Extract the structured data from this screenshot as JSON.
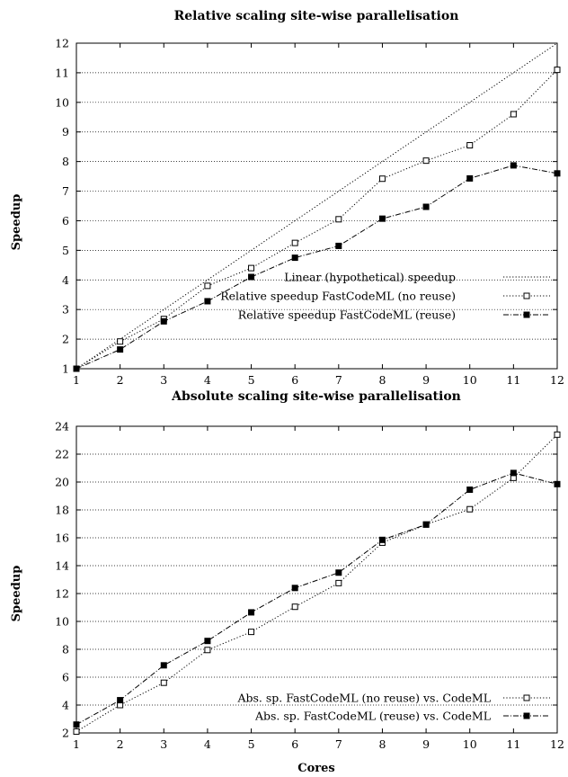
{
  "chart_data": [
    {
      "type": "line",
      "title": "Relative scaling site-wise parallelisation",
      "xlabel": "",
      "ylabel": "Speedup",
      "x": [
        1,
        2,
        3,
        4,
        5,
        6,
        7,
        8,
        9,
        10,
        11,
        12
      ],
      "xlim": [
        1,
        12
      ],
      "ylim": [
        1,
        12
      ],
      "yticks": [
        1,
        2,
        3,
        4,
        5,
        6,
        7,
        8,
        9,
        10,
        11,
        12
      ],
      "grid": "horizontal",
      "legend": "bottom-right",
      "series": [
        {
          "name": "Linear (hypothetical) speedup",
          "style": "dotted",
          "marker": "none",
          "values": [
            1,
            2,
            3,
            4,
            5,
            6,
            7,
            8,
            9,
            10,
            11,
            12
          ]
        },
        {
          "name": "Relative speedup FastCodeML (no reuse)",
          "style": "dotted",
          "marker": "open-square",
          "values": [
            1,
            1.92,
            2.68,
            3.8,
            4.4,
            5.25,
            6.05,
            7.42,
            8.03,
            8.55,
            9.6,
            11.1
          ]
        },
        {
          "name": "Relative speedup FastCodeML (reuse)",
          "style": "dashdot",
          "marker": "filled-square",
          "values": [
            1,
            1.65,
            2.6,
            3.28,
            4.1,
            4.75,
            5.15,
            6.07,
            6.47,
            7.43,
            7.87,
            7.6
          ]
        }
      ]
    },
    {
      "type": "line",
      "title": "Absolute scaling site-wise parallelisation",
      "xlabel": "Cores",
      "ylabel": "Speedup",
      "x": [
        1,
        2,
        3,
        4,
        5,
        6,
        7,
        8,
        9,
        10,
        11,
        12
      ],
      "xlim": [
        1,
        12
      ],
      "ylim": [
        2,
        24
      ],
      "yticks": [
        2,
        4,
        6,
        8,
        10,
        12,
        14,
        16,
        18,
        20,
        22,
        24
      ],
      "grid": "horizontal",
      "legend": "bottom-right",
      "series": [
        {
          "name": "Abs. sp. FastCodeML (no reuse) vs. CodeML",
          "style": "dotted",
          "marker": "open-square",
          "values": [
            2.1,
            4.0,
            5.6,
            7.95,
            9.25,
            11.05,
            12.75,
            15.65,
            16.95,
            18.05,
            20.3,
            23.4
          ]
        },
        {
          "name": "Abs. sp. FastCodeML (reuse) vs. CodeML",
          "style": "dashdot",
          "marker": "filled-square",
          "values": [
            2.6,
            4.35,
            6.85,
            8.6,
            10.65,
            12.4,
            13.5,
            15.85,
            16.95,
            19.45,
            20.65,
            19.85
          ]
        }
      ]
    }
  ]
}
